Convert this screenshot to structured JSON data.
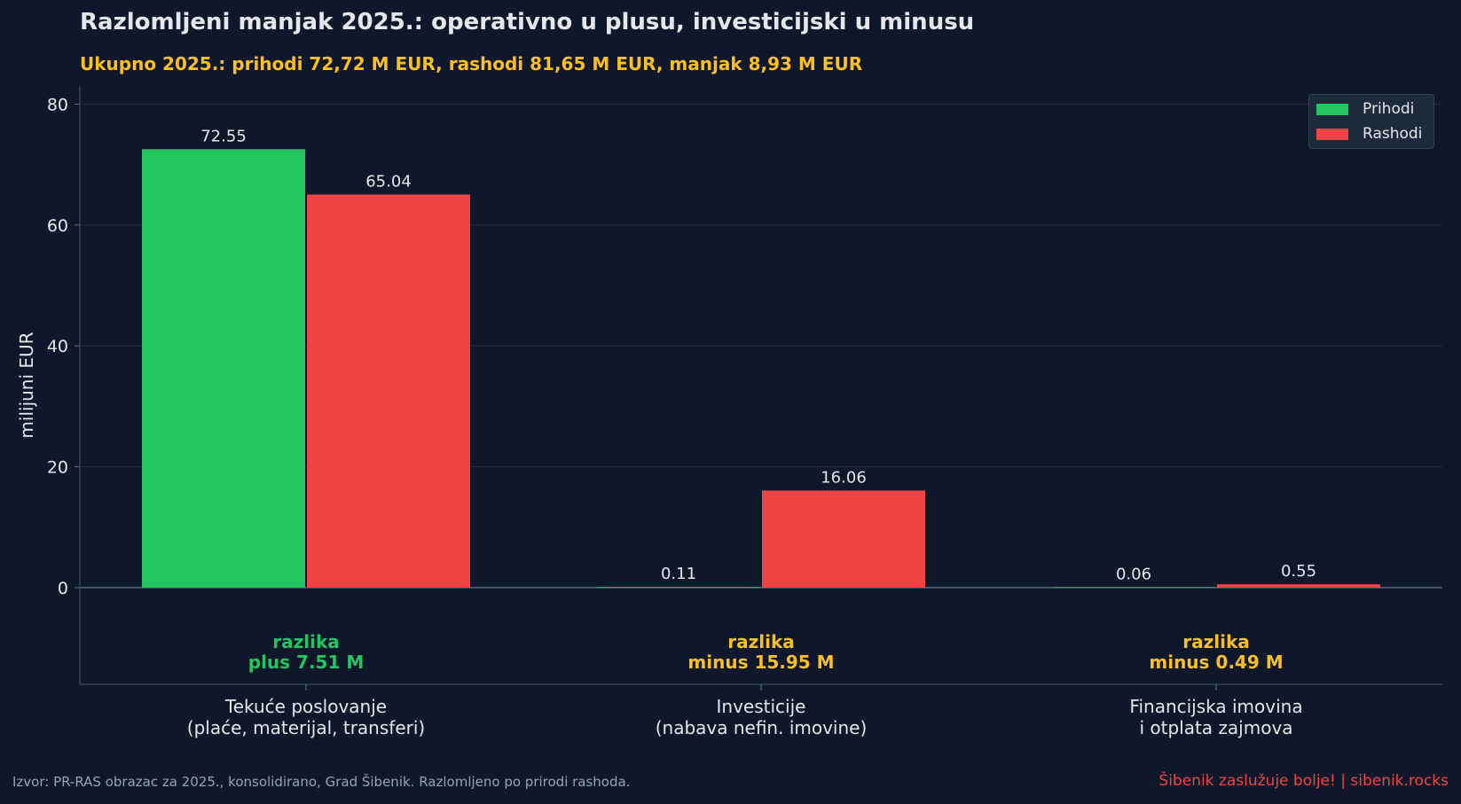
{
  "title": "Razlomljeni manjak 2025.: operativno u plusu, investicijski u minusu",
  "subtitle": "Ukupno 2025.: prihodi 72,72 M EUR, rashodi 81,65 M EUR, manjak 8,93 M EUR",
  "footer": {
    "source": "Izvor: PR-RAS obrazac za 2025., konsolidirano, Grad Šibenik. Razlomljeno po prirodi rashoda.",
    "brand": "Šibenik zaslužuje bolje!  |  sibenik.rocks"
  },
  "colors": {
    "background": "#0f172a",
    "prihodi": "#22c55e",
    "rashodi": "#ef4444",
    "positive_note": "#22c55e",
    "negative_note": "#fbbf24",
    "text": "#e5e7eb",
    "grid": "#1e293b"
  },
  "chart_data": {
    "type": "bar",
    "categories": [
      [
        "Tekuće poslovanje",
        "(plaće, materijal, transferi)"
      ],
      [
        "Investicije",
        "(nabava nefin. imovine)"
      ],
      [
        "Financijska imovina",
        "i otplata zajmova"
      ]
    ],
    "series": [
      {
        "name": "Prihodi",
        "values": [
          72.55,
          0.11,
          0.06
        ],
        "labels": [
          "72.55",
          "0.11",
          "0.06"
        ]
      },
      {
        "name": "Rashodi",
        "values": [
          65.04,
          16.06,
          0.55
        ],
        "labels": [
          "65.04",
          "16.06",
          "0.55"
        ]
      }
    ],
    "differences": [
      {
        "line1": "razlika",
        "line2": "plus 7.51 M",
        "sign": "positive"
      },
      {
        "line1": "razlika",
        "line2": "minus 15.95 M",
        "sign": "negative"
      },
      {
        "line1": "razlika",
        "line2": "minus 0.49 M",
        "sign": "negative"
      }
    ],
    "ylabel": "milijuni EUR",
    "xlabel": "",
    "ylim": [
      -16,
      83
    ],
    "yticks": [
      0,
      20,
      40,
      60,
      80
    ],
    "grid": true,
    "legend_position": "top-right"
  }
}
